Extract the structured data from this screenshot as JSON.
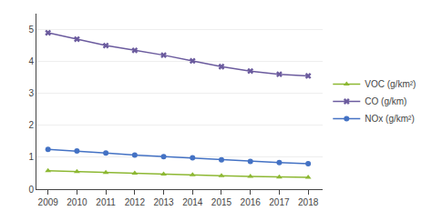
{
  "chart_data": {
    "type": "line",
    "x": [
      2009,
      2010,
      2011,
      2012,
      2013,
      2014,
      2015,
      2016,
      2017,
      2018
    ],
    "series": [
      {
        "name": "VOC (g/km²)",
        "color": "#8db833",
        "marker": "triangle-up",
        "values": [
          0.58,
          0.55,
          0.52,
          0.5,
          0.47,
          0.45,
          0.42,
          0.4,
          0.38,
          0.37
        ]
      },
      {
        "name": "CO (g/km)",
        "color": "#6b5b9e",
        "marker": "x",
        "values": [
          4.9,
          4.7,
          4.5,
          4.35,
          4.2,
          4.02,
          3.84,
          3.7,
          3.6,
          3.55
        ]
      },
      {
        "name": "NOx (g/km²)",
        "color": "#4472c4",
        "marker": "circle",
        "values": [
          1.25,
          1.2,
          1.13,
          1.07,
          1.02,
          0.98,
          0.92,
          0.87,
          0.83,
          0.8
        ]
      }
    ],
    "xlim": [
      2008.6,
      2018.5
    ],
    "xticks": [
      2009,
      2010,
      2011,
      2012,
      2013,
      2014,
      2015,
      2016,
      2017,
      2018
    ],
    "ylim": [
      0,
      5.5
    ],
    "yticks": [
      0,
      1,
      2,
      3,
      4,
      5
    ],
    "grid": true,
    "legend": "right"
  }
}
